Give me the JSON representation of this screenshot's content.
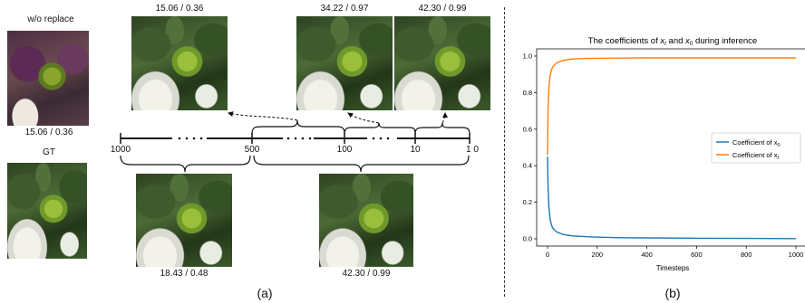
{
  "panel_a": {
    "label": "(a)",
    "top_left_title": "w/o replace",
    "top_left_score": "15.06 / 0.36",
    "gt_title": "GT",
    "top_images": [
      "15.06 / 0.36",
      "34.22 / 0.97",
      "42.30 / 0.99"
    ],
    "bottom_images": [
      "18.43 / 0.48",
      "42.30 / 0.99"
    ],
    "axis_ticks": [
      "1000",
      "500",
      "100",
      "10",
      "1 0"
    ]
  },
  "panel_b": {
    "label": "(b)"
  },
  "chart_data": {
    "type": "line",
    "title": "The coefficients of x_t and x_0 during inference",
    "title_parts": {
      "prefix": "The coefficients of ",
      "xt": "x",
      "xt_sub": "t",
      "and": " and ",
      "x0": "x",
      "x0_sub": "0",
      "suffix": " during inference"
    },
    "xlabel": "Timesteps",
    "ylabel": "",
    "xlim": [
      0,
      1000
    ],
    "ylim": [
      0.0,
      1.0
    ],
    "x_ticks": [
      "0",
      "200",
      "400",
      "600",
      "800",
      "1000"
    ],
    "y_ticks": [
      "0.0",
      "0.2",
      "0.4",
      "0.6",
      "0.8",
      "1.0"
    ],
    "legend_position": "center-right",
    "series": [
      {
        "name": "Coefficient of x_0",
        "legend_base": "Coefficient of x",
        "legend_sub": "0",
        "color": "#1f77b4",
        "x": [
          0,
          2,
          5,
          10,
          15,
          20,
          30,
          40,
          60,
          80,
          100,
          150,
          200,
          300,
          400,
          600,
          800,
          1000
        ],
        "values": [
          0.45,
          0.3,
          0.18,
          0.11,
          0.08,
          0.06,
          0.045,
          0.035,
          0.025,
          0.02,
          0.016,
          0.012,
          0.009,
          0.006,
          0.005,
          0.003,
          0.002,
          0.001
        ]
      },
      {
        "name": "Coefficient of x_t",
        "legend_base": "Coefficient of x",
        "legend_sub": "t",
        "color": "#ff7f0e",
        "x": [
          0,
          2,
          5,
          10,
          15,
          20,
          30,
          40,
          60,
          80,
          100,
          150,
          200,
          300,
          400,
          600,
          800,
          1000
        ],
        "values": [
          0.46,
          0.7,
          0.82,
          0.89,
          0.92,
          0.94,
          0.955,
          0.965,
          0.975,
          0.98,
          0.984,
          0.987,
          0.988,
          0.989,
          0.99,
          0.99,
          0.99,
          0.99
        ]
      }
    ]
  }
}
